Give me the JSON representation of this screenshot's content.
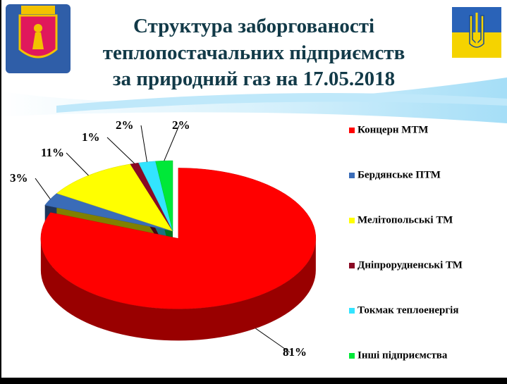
{
  "chart_data": {
    "type": "pie",
    "title": [
      "Структура заборгованості",
      "теплопостачальних підприємств",
      "за природний газ на 17.05.2018"
    ],
    "categories": [
      "Концерн МТМ",
      "Бердянське ПТМ",
      "Мелітопольські ТМ",
      "Дніпрорудненські ТМ",
      "Токмак теплоенергія",
      "Інші підприємства"
    ],
    "values": [
      81,
      3,
      11,
      1,
      2,
      2
    ],
    "value_labels": [
      "81%",
      "3%",
      "11%",
      "1%",
      "2%",
      "2%"
    ],
    "colors": [
      "#ff0000",
      "#3a6cb8",
      "#ffff00",
      "#8a0a24",
      "#33e4ff",
      "#00e838"
    ],
    "legend": "right"
  }
}
